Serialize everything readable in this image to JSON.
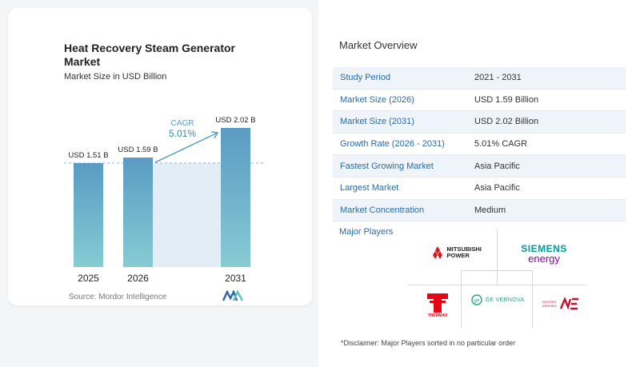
{
  "chart": {
    "title": "Heat Recovery Steam Generator Market",
    "subtitle": "Market Size in USD Billion",
    "source": "Source:  Mordor Intelligence",
    "cagr_label": "CAGR",
    "cagr_value": "5.01%"
  },
  "chart_data": {
    "type": "bar",
    "categories": [
      "2025",
      "2026",
      "2031"
    ],
    "values": [
      1.51,
      1.59,
      2.02
    ],
    "data_labels": [
      "USD 1.51 B",
      "USD 1.59 B",
      "USD 2.02 B"
    ],
    "title": "Heat Recovery Steam Generator Market",
    "ylabel": "Market Size in USD Billion",
    "grid": false,
    "colors": {
      "bar_top": "#5a9bc3",
      "bar_bottom": "#87cbd4",
      "cagr": "#5a9bc3",
      "cagr_band": "#e3edf5"
    }
  },
  "overview": {
    "title": "Market Overview",
    "rows": [
      {
        "key": "Study Period",
        "value": "2021 - 2031"
      },
      {
        "key": "Market Size (2026)",
        "value": "USD 1.59 Billion"
      },
      {
        "key": "Market Size (2031)",
        "value": "USD 2.02 Billion"
      },
      {
        "key": "Growth Rate (2026 - 2031)",
        "value": "5.01% CAGR"
      },
      {
        "key": "Fastest Growing Market",
        "value": "Asia Pacific"
      },
      {
        "key": "Largest Market",
        "value": "Asia Pacific"
      },
      {
        "key": "Market Concentration",
        "value": "Medium"
      }
    ]
  },
  "players": {
    "title": "Major Players",
    "mitsubishi": "MITSUBISHI POWER",
    "siemens_1": "SIEMENS",
    "siemens_2": "energy",
    "thermax": "THERMAX",
    "ge": "GE VERNOVA",
    "nooter": "NOOTER ERIKSEN"
  },
  "disclaimer": "*Disclaimer: Major Players sorted in no particular order"
}
